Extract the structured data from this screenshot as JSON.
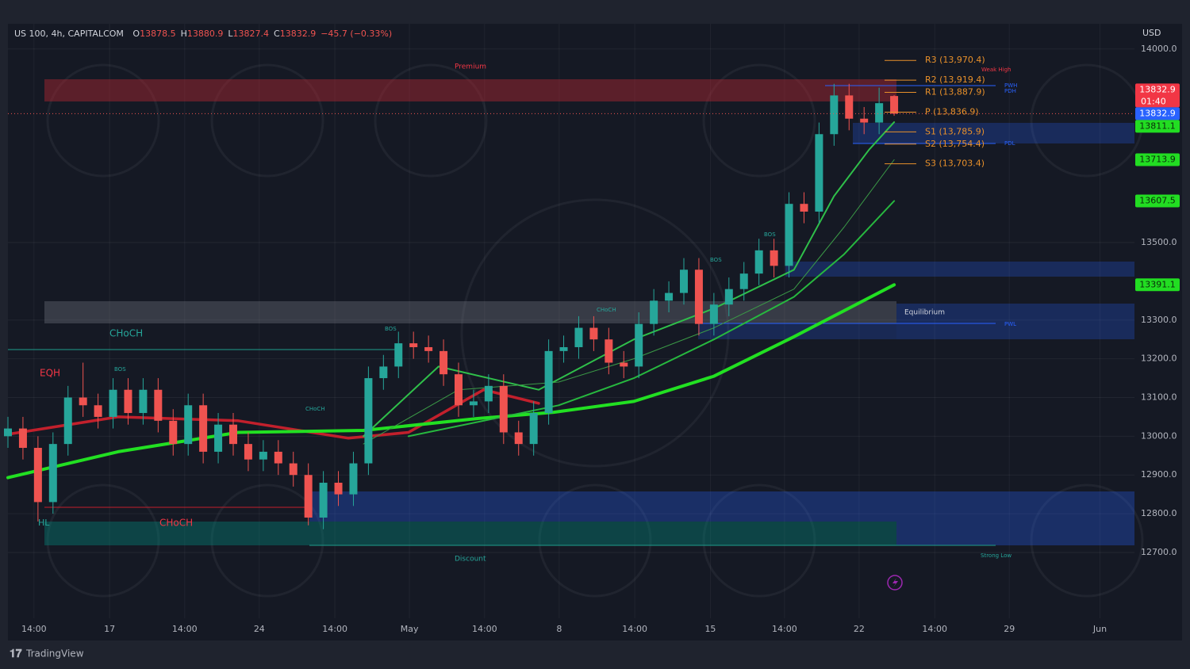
{
  "chart_data": {
    "type": "candlestick",
    "title": "US 100, 4h, CAPITALCOM",
    "header_stats": [
      {
        "prefix": "O",
        "value": 13878.5
      },
      {
        "prefix": "H",
        "value": 13880.9
      },
      {
        "prefix": "L",
        "value": 13827.4
      },
      {
        "prefix": "C",
        "value": 13832.9
      }
    ],
    "change": "−45.7 (−0.33%)",
    "currency": "USD",
    "brand": "TradingView",
    "up_color": "#26a69a",
    "down_color": "#ef5350",
    "grid": true,
    "x": [
      0,
      3,
      6,
      9,
      12,
      15,
      18,
      21,
      24,
      27,
      30,
      33,
      36,
      39,
      42,
      45,
      48,
      51,
      54,
      57,
      60,
      63,
      66,
      69,
      72,
      75,
      78,
      81,
      84,
      87,
      90,
      93,
      96,
      99,
      102,
      105,
      108,
      111,
      114,
      117,
      120,
      123,
      126,
      129,
      132,
      135,
      138,
      141,
      144,
      147,
      150,
      153,
      156,
      159,
      162,
      165,
      168,
      171,
      174,
      177
    ],
    "open": [
      13000,
      13020,
      12970,
      12830,
      12980,
      13100,
      13080,
      13050,
      13120,
      13060,
      13120,
      13040,
      12980,
      13080,
      12960,
      13030,
      12980,
      12940,
      12960,
      12930,
      12900,
      12790,
      12880,
      12850,
      12930,
      13150,
      13180,
      13240,
      13230,
      13220,
      13160,
      13080,
      13090,
      13130,
      13010,
      12980,
      13060,
      13220,
      13230,
      13280,
      13250,
      13190,
      13180,
      13290,
      13350,
      13370,
      13430,
      13290,
      13340,
      13380,
      13420,
      13480,
      13440,
      13600,
      13580,
      13780,
      13880,
      13820,
      13810,
      13878.5
    ],
    "high": [
      13050,
      13050,
      13000,
      13010,
      13130,
      13190,
      13110,
      13150,
      13150,
      13150,
      13150,
      13070,
      13110,
      13110,
      13060,
      13060,
      13010,
      12990,
      12990,
      12960,
      12930,
      12910,
      12910,
      12960,
      13180,
      13210,
      13270,
      13270,
      13260,
      13250,
      13190,
      13120,
      13160,
      13160,
      13040,
      13090,
      13250,
      13260,
      13310,
      13310,
      13280,
      13220,
      13320,
      13380,
      13400,
      13460,
      13460,
      13370,
      13410,
      13450,
      13510,
      13510,
      13630,
      13630,
      13810,
      13910,
      13910,
      13850,
      13900,
      13880.9
    ],
    "low": [
      12970,
      12940,
      12780,
      12800,
      12950,
      13050,
      13020,
      13020,
      13030,
      13030,
      13010,
      12950,
      12950,
      12930,
      12930,
      12950,
      12910,
      12910,
      12900,
      12870,
      12770,
      12760,
      12820,
      12820,
      12900,
      13120,
      13150,
      13200,
      13190,
      13130,
      13050,
      13050,
      13060,
      12980,
      12950,
      12950,
      13030,
      13190,
      13200,
      13220,
      13160,
      13150,
      13150,
      13260,
      13320,
      13340,
      13260,
      13260,
      13310,
      13350,
      13390,
      13410,
      13410,
      13550,
      13550,
      13750,
      13790,
      13780,
      13780,
      13827.4
    ],
    "close": [
      13020,
      12970,
      12830,
      12980,
      13100,
      13080,
      13050,
      13120,
      13060,
      13120,
      13040,
      12980,
      13080,
      12960,
      13030,
      12980,
      12940,
      12960,
      12930,
      12900,
      12790,
      12880,
      12850,
      12930,
      13150,
      13180,
      13240,
      13230,
      13220,
      13160,
      13080,
      13090,
      13130,
      13010,
      12980,
      13060,
      13220,
      13230,
      13280,
      13250,
      13190,
      13180,
      13290,
      13350,
      13370,
      13430,
      13290,
      13340,
      13380,
      13420,
      13480,
      13440,
      13600,
      13580,
      13780,
      13880,
      13820,
      13810,
      13860,
      13832.9
    ],
    "overlays": [
      {
        "color": "#c2202c",
        "width": 3.5,
        "x": [
          0,
          22,
          46,
          68,
          80,
          95,
          106
        ],
        "values": [
          13005,
          13050,
          13040,
          12995,
          13010,
          13120,
          13085
        ]
      },
      {
        "color": "#22e022",
        "width": 4,
        "x": [
          0,
          22,
          46,
          71,
          94,
          109,
          125,
          141,
          157,
          177
        ],
        "values": [
          12893,
          12960,
          13010,
          13015,
          13046,
          13062,
          13090,
          13155,
          13257,
          13391.1
        ]
      },
      {
        "color": "#2fbf4a",
        "width": 2,
        "x": [
          71,
          86,
          106,
          125,
          141,
          157,
          165,
          172,
          177
        ],
        "values": [
          13000,
          13180,
          13120,
          13250,
          13330,
          13430,
          13620,
          13740,
          13811.1
        ]
      },
      {
        "color": "#3b9a47",
        "width": 1,
        "x": [
          71,
          90,
          110,
          125,
          141,
          157,
          167,
          177
        ],
        "values": [
          12980,
          13120,
          13140,
          13200,
          13280,
          13380,
          13540,
          13713.9
        ]
      },
      {
        "color": "#27b83f",
        "width": 2,
        "x": [
          80,
          110,
          125,
          141,
          157,
          167,
          177
        ],
        "values": [
          13000,
          13080,
          13150,
          13250,
          13360,
          13470,
          13607.5
        ]
      }
    ],
    "pivots": [
      {
        "label": "R3 (13,970.4)",
        "value": 13970.4
      },
      {
        "label": "R2 (13,919.4)",
        "value": 13919.4
      },
      {
        "label": "R1 (13,887.9)",
        "value": 13887.9
      },
      {
        "label": "P (13,836.9)",
        "value": 13836.9
      },
      {
        "label": "S1 (13,785.9)",
        "value": 13785.9
      },
      {
        "label": "S2 (13,754.4)",
        "value": 13754.4
      },
      {
        "label": "S3 (13,703.4)",
        "value": 13703.4
      }
    ],
    "pivot_color": "#e8902a",
    "price_tags": [
      {
        "value": 13832.9,
        "color": "#f23645",
        "countdown": "01:40"
      },
      {
        "value": 13832.9,
        "color": "#2962ff"
      },
      {
        "value": 13811.1,
        "color": "#22dd22"
      },
      {
        "value": 13713.9,
        "color": "#22dd22"
      },
      {
        "value": 13607.5,
        "color": "#22dd22"
      },
      {
        "value": 13391.1,
        "color": "#22dd22"
      }
    ],
    "labels": [
      "Premium",
      "Equilibrium",
      "Discount",
      "CHoCH",
      "EQH",
      "HL",
      "CHoCH",
      "BOS",
      "BOS",
      "BOS",
      "BOS",
      "CHoCH",
      "CHoCH",
      "Weak High",
      "Strong Low",
      "PWH",
      "PDH",
      "PDL",
      "PWL"
    ],
    "xlim": [
      0,
      225
    ],
    "xticks": [
      {
        "value": 5.2,
        "label": "14:00"
      },
      {
        "value": 20.3,
        "label": "17"
      },
      {
        "value": 35.3,
        "label": "14:00"
      },
      {
        "value": 50.2,
        "label": "24"
      },
      {
        "value": 65.3,
        "label": "14:00"
      },
      {
        "value": 80.2,
        "label": "May"
      },
      {
        "value": 95.2,
        "label": "14:00"
      },
      {
        "value": 110.1,
        "label": "8"
      },
      {
        "value": 125.2,
        "label": "14:00"
      },
      {
        "value": 140.3,
        "label": "15"
      },
      {
        "value": 155.1,
        "label": "14:00"
      },
      {
        "value": 170,
        "label": "22"
      },
      {
        "value": 185.1,
        "label": "14:00"
      },
      {
        "value": 200,
        "label": "29"
      },
      {
        "value": 218.1,
        "label": "Jun"
      }
    ],
    "ylim": [
      12530,
      14065
    ],
    "yticks": [
      {
        "value": 14000,
        "label": "14000.0"
      },
      {
        "value": 13500,
        "label": "13500.0"
      },
      {
        "value": 13300,
        "label": "13300.0"
      },
      {
        "value": 13200,
        "label": "13200.0"
      },
      {
        "value": 13100,
        "label": "13100.0"
      },
      {
        "value": 13000,
        "label": "13000.0"
      },
      {
        "value": 12900,
        "label": "12900.0"
      },
      {
        "value": 12800,
        "label": "12800.0"
      },
      {
        "value": 12700,
        "label": "12700.0"
      }
    ]
  }
}
